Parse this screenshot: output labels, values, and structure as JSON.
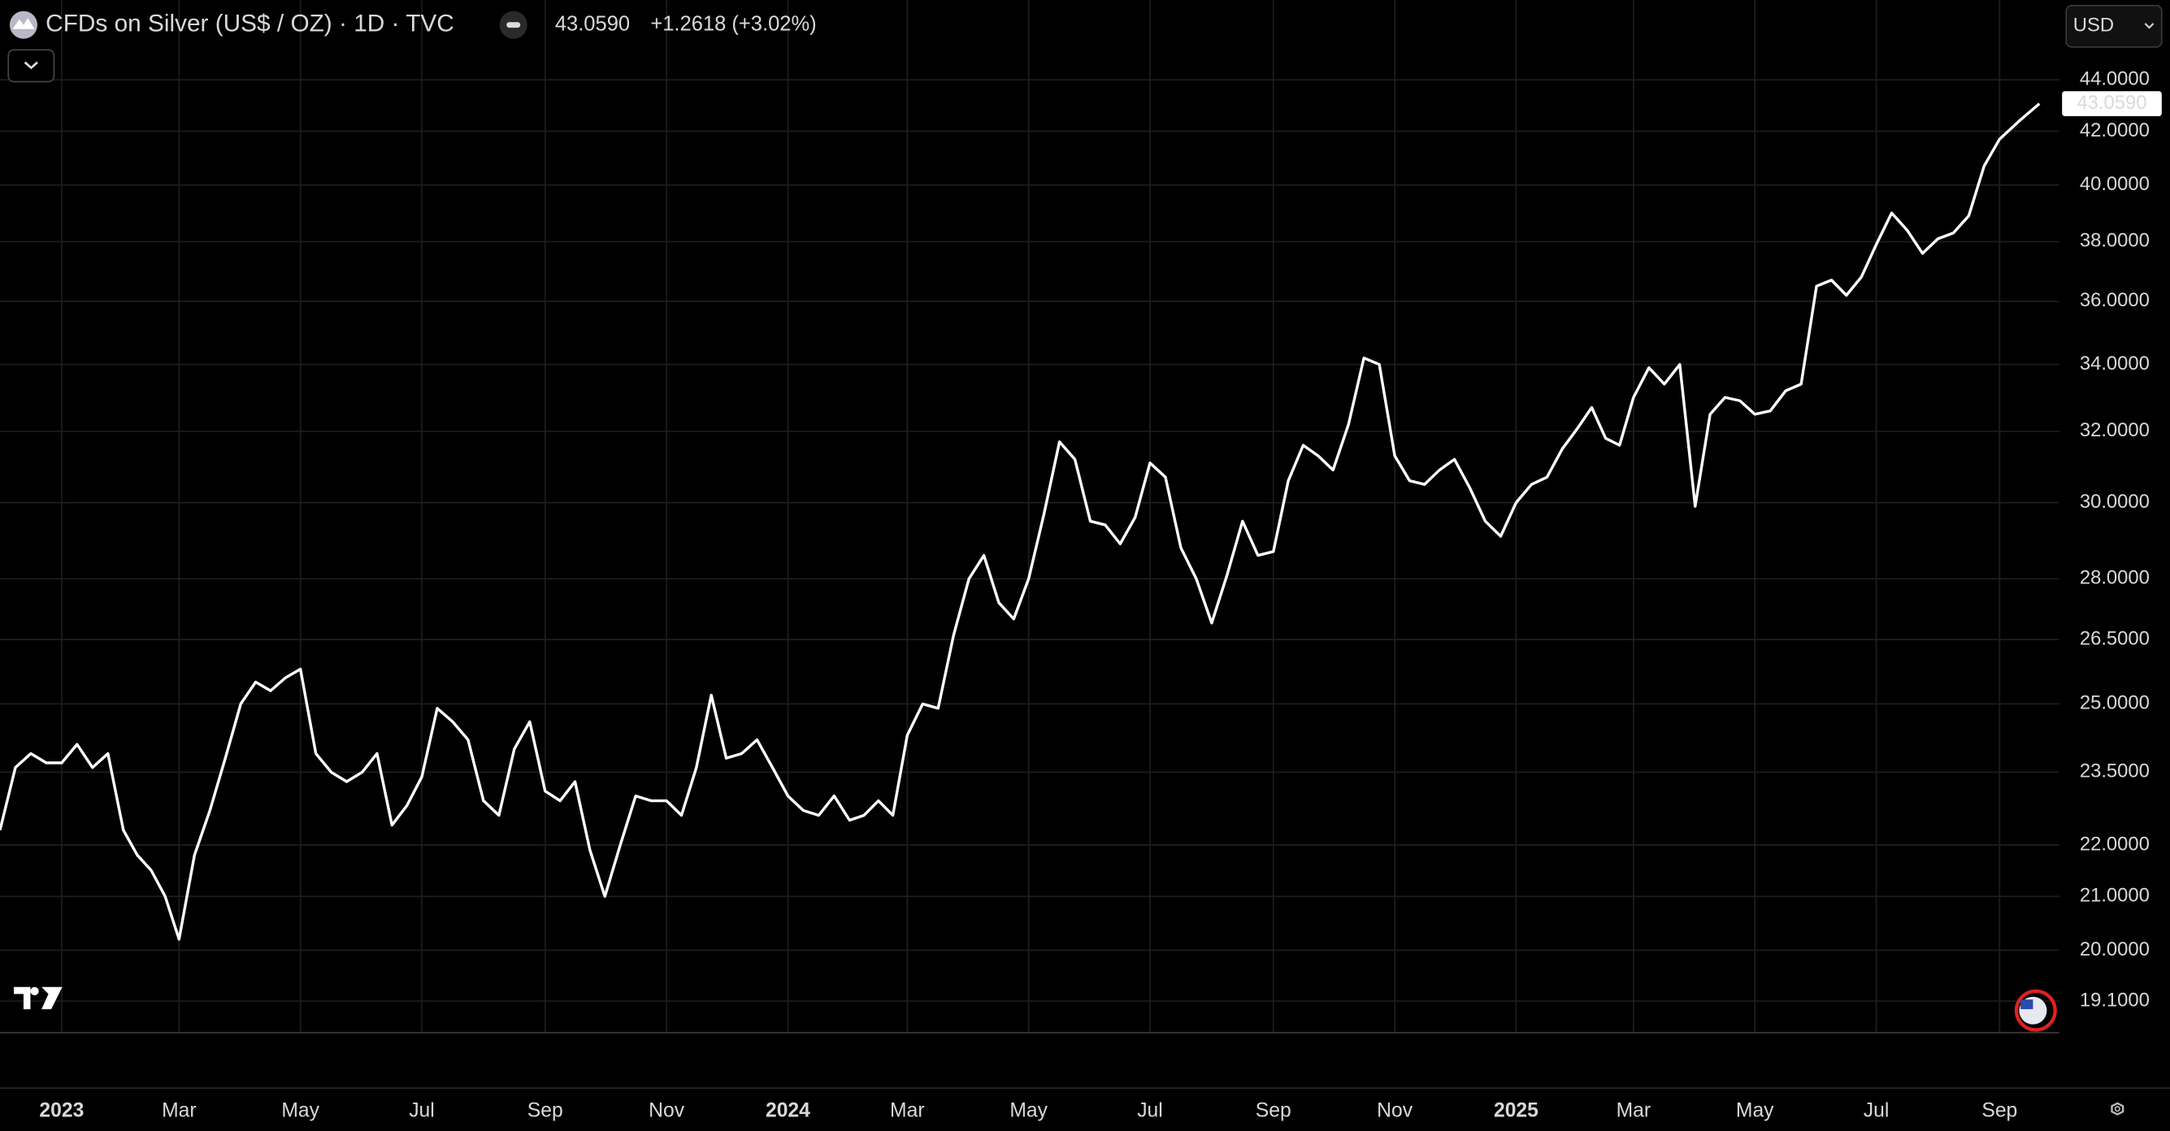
{
  "header": {
    "symbol": "CFDs on Silver (US$ / OZ) · 1D · TVC",
    "price": "43.0590",
    "change": "+1.2618 (+3.02%)",
    "currency": "USD"
  },
  "chart_data": {
    "type": "line",
    "log_scale": true,
    "grid": true,
    "xlim": [
      "2022-12",
      "2025-10"
    ],
    "xticks": [
      {
        "value": "2023-01",
        "label": "2023"
      },
      {
        "value": "2023-03",
        "label": "Mar"
      },
      {
        "value": "2023-05",
        "label": "May"
      },
      {
        "value": "2023-07",
        "label": "Jul"
      },
      {
        "value": "2023-09",
        "label": "Sep"
      },
      {
        "value": "2023-11",
        "label": "Nov"
      },
      {
        "value": "2024-01",
        "label": "2024"
      },
      {
        "value": "2024-03",
        "label": "Mar"
      },
      {
        "value": "2024-05",
        "label": "May"
      },
      {
        "value": "2024-07",
        "label": "Jul"
      },
      {
        "value": "2024-09",
        "label": "Sep"
      },
      {
        "value": "2024-11",
        "label": "Nov"
      },
      {
        "value": "2025-01",
        "label": "2025"
      },
      {
        "value": "2025-03",
        "label": "Mar"
      },
      {
        "value": "2025-05",
        "label": "May"
      },
      {
        "value": "2025-07",
        "label": "Jul"
      },
      {
        "value": "2025-09",
        "label": "Sep"
      }
    ],
    "ylim": [
      18.56,
      47.3
    ],
    "yticks": [
      {
        "value": 44,
        "label": "44.0000"
      },
      {
        "value": 42,
        "label": "42.0000"
      },
      {
        "value": 40,
        "label": "40.0000"
      },
      {
        "value": 38,
        "label": "38.0000"
      },
      {
        "value": 36,
        "label": "36.0000"
      },
      {
        "value": 34,
        "label": "34.0000"
      },
      {
        "value": 32,
        "label": "32.0000"
      },
      {
        "value": 30,
        "label": "30.0000"
      },
      {
        "value": 28,
        "label": "28.0000"
      },
      {
        "value": 26.5,
        "label": "26.5000"
      },
      {
        "value": 25,
        "label": "25.0000"
      },
      {
        "value": 23.5,
        "label": "23.5000"
      },
      {
        "value": 22,
        "label": "22.0000"
      },
      {
        "value": 21,
        "label": "21.0000"
      },
      {
        "value": 20,
        "label": "20.0000"
      },
      {
        "value": 19.1,
        "label": "19.1000"
      }
    ],
    "x": [
      "2022-12",
      "2022-12",
      "2022-12",
      "2022-12",
      "2023-01",
      "2023-01",
      "2023-01",
      "2023-01",
      "2023-02",
      "2023-02",
      "2023-02",
      "2023-02",
      "2023-03",
      "2023-03",
      "2023-03",
      "2023-03",
      "2023-04",
      "2023-04",
      "2023-04",
      "2023-04",
      "2023-05",
      "2023-05",
      "2023-05",
      "2023-05",
      "2023-06",
      "2023-06",
      "2023-06",
      "2023-06",
      "2023-07",
      "2023-07",
      "2023-07",
      "2023-07",
      "2023-08",
      "2023-08",
      "2023-08",
      "2023-08",
      "2023-09",
      "2023-09",
      "2023-09",
      "2023-09",
      "2023-10",
      "2023-10",
      "2023-10",
      "2023-10",
      "2023-11",
      "2023-11",
      "2023-11",
      "2023-11",
      "2023-12",
      "2023-12",
      "2023-12",
      "2023-12",
      "2024-01",
      "2024-01",
      "2024-01",
      "2024-01",
      "2024-02",
      "2024-02",
      "2024-02",
      "2024-02",
      "2024-03",
      "2024-03",
      "2024-03",
      "2024-03",
      "2024-04",
      "2024-04",
      "2024-04",
      "2024-04",
      "2024-05",
      "2024-05",
      "2024-05",
      "2024-05",
      "2024-06",
      "2024-06",
      "2024-06",
      "2024-06",
      "2024-07",
      "2024-07",
      "2024-07",
      "2024-07",
      "2024-08",
      "2024-08",
      "2024-08",
      "2024-08",
      "2024-09",
      "2024-09",
      "2024-09",
      "2024-09",
      "2024-10",
      "2024-10",
      "2024-10",
      "2024-10",
      "2024-11",
      "2024-11",
      "2024-11",
      "2024-11",
      "2024-12",
      "2024-12",
      "2024-12",
      "2024-12",
      "2025-01",
      "2025-01",
      "2025-01",
      "2025-01",
      "2025-02",
      "2025-02",
      "2025-02",
      "2025-02",
      "2025-03",
      "2025-03",
      "2025-03",
      "2025-03",
      "2025-04",
      "2025-04",
      "2025-04",
      "2025-04",
      "2025-05",
      "2025-05",
      "2025-05",
      "2025-05",
      "2025-06",
      "2025-06",
      "2025-06",
      "2025-06",
      "2025-07",
      "2025-07",
      "2025-07",
      "2025-07",
      "2025-08",
      "2025-08",
      "2025-08",
      "2025-08",
      "2025-09",
      "2025-09",
      "2025-09"
    ],
    "series": [
      {
        "name": "CFDs on Silver",
        "color": "#ffffff",
        "values": [
          22.3,
          23.6,
          23.9,
          23.7,
          23.7,
          24.1,
          23.6,
          23.9,
          22.3,
          21.8,
          21.5,
          21.0,
          20.2,
          21.8,
          22.7,
          23.8,
          25.0,
          25.5,
          25.3,
          25.6,
          25.8,
          23.9,
          23.5,
          23.3,
          23.5,
          23.9,
          22.4,
          22.8,
          23.4,
          24.9,
          24.6,
          24.2,
          22.9,
          22.6,
          24.0,
          24.6,
          23.1,
          22.9,
          23.3,
          21.9,
          21.0,
          22.0,
          23.0,
          22.9,
          22.9,
          22.6,
          23.6,
          25.2,
          23.8,
          23.9,
          24.2,
          23.6,
          23.0,
          22.7,
          22.6,
          23.0,
          22.5,
          22.6,
          22.9,
          22.6,
          24.3,
          25.0,
          24.9,
          26.6,
          28.0,
          28.6,
          27.4,
          27.0,
          28.0,
          29.7,
          31.7,
          31.2,
          29.5,
          29.4,
          28.9,
          29.6,
          31.1,
          30.7,
          28.8,
          28.0,
          26.9,
          28.1,
          29.5,
          28.6,
          28.7,
          30.6,
          31.6,
          31.3,
          30.9,
          32.2,
          34.2,
          34.0,
          31.3,
          30.6,
          30.5,
          30.9,
          31.2,
          30.4,
          29.5,
          29.1,
          30.0,
          30.5,
          30.7,
          31.5,
          32.1,
          32.7,
          31.8,
          31.6,
          33.0,
          33.9,
          33.4,
          34.0,
          29.9,
          32.5,
          33.0,
          32.9,
          32.5,
          32.6,
          33.2,
          33.4,
          36.5,
          36.7,
          36.2,
          36.8,
          37.9,
          39.0,
          38.4,
          37.6,
          38.1,
          38.3,
          38.9,
          40.7,
          41.7,
          42.4,
          43.059
        ]
      }
    ]
  }
}
